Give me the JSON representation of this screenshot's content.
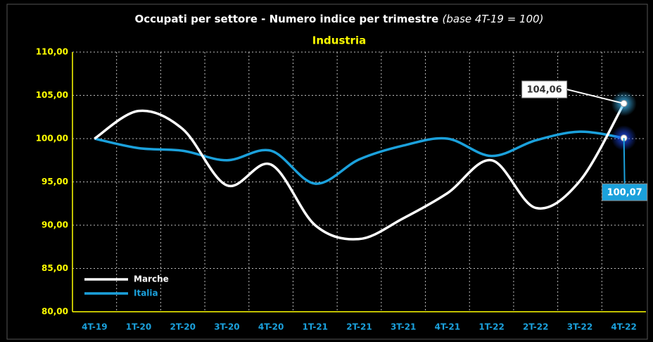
{
  "chart_data": {
    "type": "line",
    "title": "Occupati per settore - Numero indice per trimestre",
    "title_note": "(base 4T-19 = 100)",
    "subtitle": "Industria",
    "categories": [
      "4T-19",
      "1T-20",
      "2T-20",
      "3T-20",
      "4T-20",
      "1T-21",
      "2T-21",
      "3T-21",
      "4T-21",
      "1T-22",
      "2T-22",
      "3T-22",
      "4T-22"
    ],
    "series": [
      {
        "name": "Marche",
        "color": "#ffffff",
        "values": [
          100,
          103.2,
          101.1,
          94.6,
          97,
          90,
          88.4,
          90.8,
          93.7,
          97.5,
          92,
          95.1,
          104.06
        ],
        "value_labels": [
          null,
          null,
          null,
          null,
          null,
          null,
          null,
          null,
          null,
          null,
          null,
          null,
          "104,06"
        ]
      },
      {
        "name": "Italia",
        "color": "#1ba1dc",
        "values": [
          100,
          98.9,
          98.6,
          97.5,
          98.6,
          94.8,
          97.6,
          99.2,
          100,
          98,
          99.8,
          100.8,
          100.07
        ],
        "value_labels": [
          null,
          null,
          null,
          null,
          null,
          null,
          null,
          null,
          null,
          null,
          null,
          null,
          "100,07"
        ]
      }
    ],
    "ylim": [
      80,
      110
    ],
    "yticks": [
      {
        "value": 80,
        "label": "80,00"
      },
      {
        "value": 85,
        "label": "85,00"
      },
      {
        "value": 90,
        "label": "90,00"
      },
      {
        "value": 95,
        "label": "95,00"
      },
      {
        "value": 100,
        "label": "100,00"
      },
      {
        "value": 105,
        "label": "105,00"
      },
      {
        "value": 110,
        "label": "110,00"
      }
    ],
    "grid": true,
    "legend": "lower left"
  }
}
